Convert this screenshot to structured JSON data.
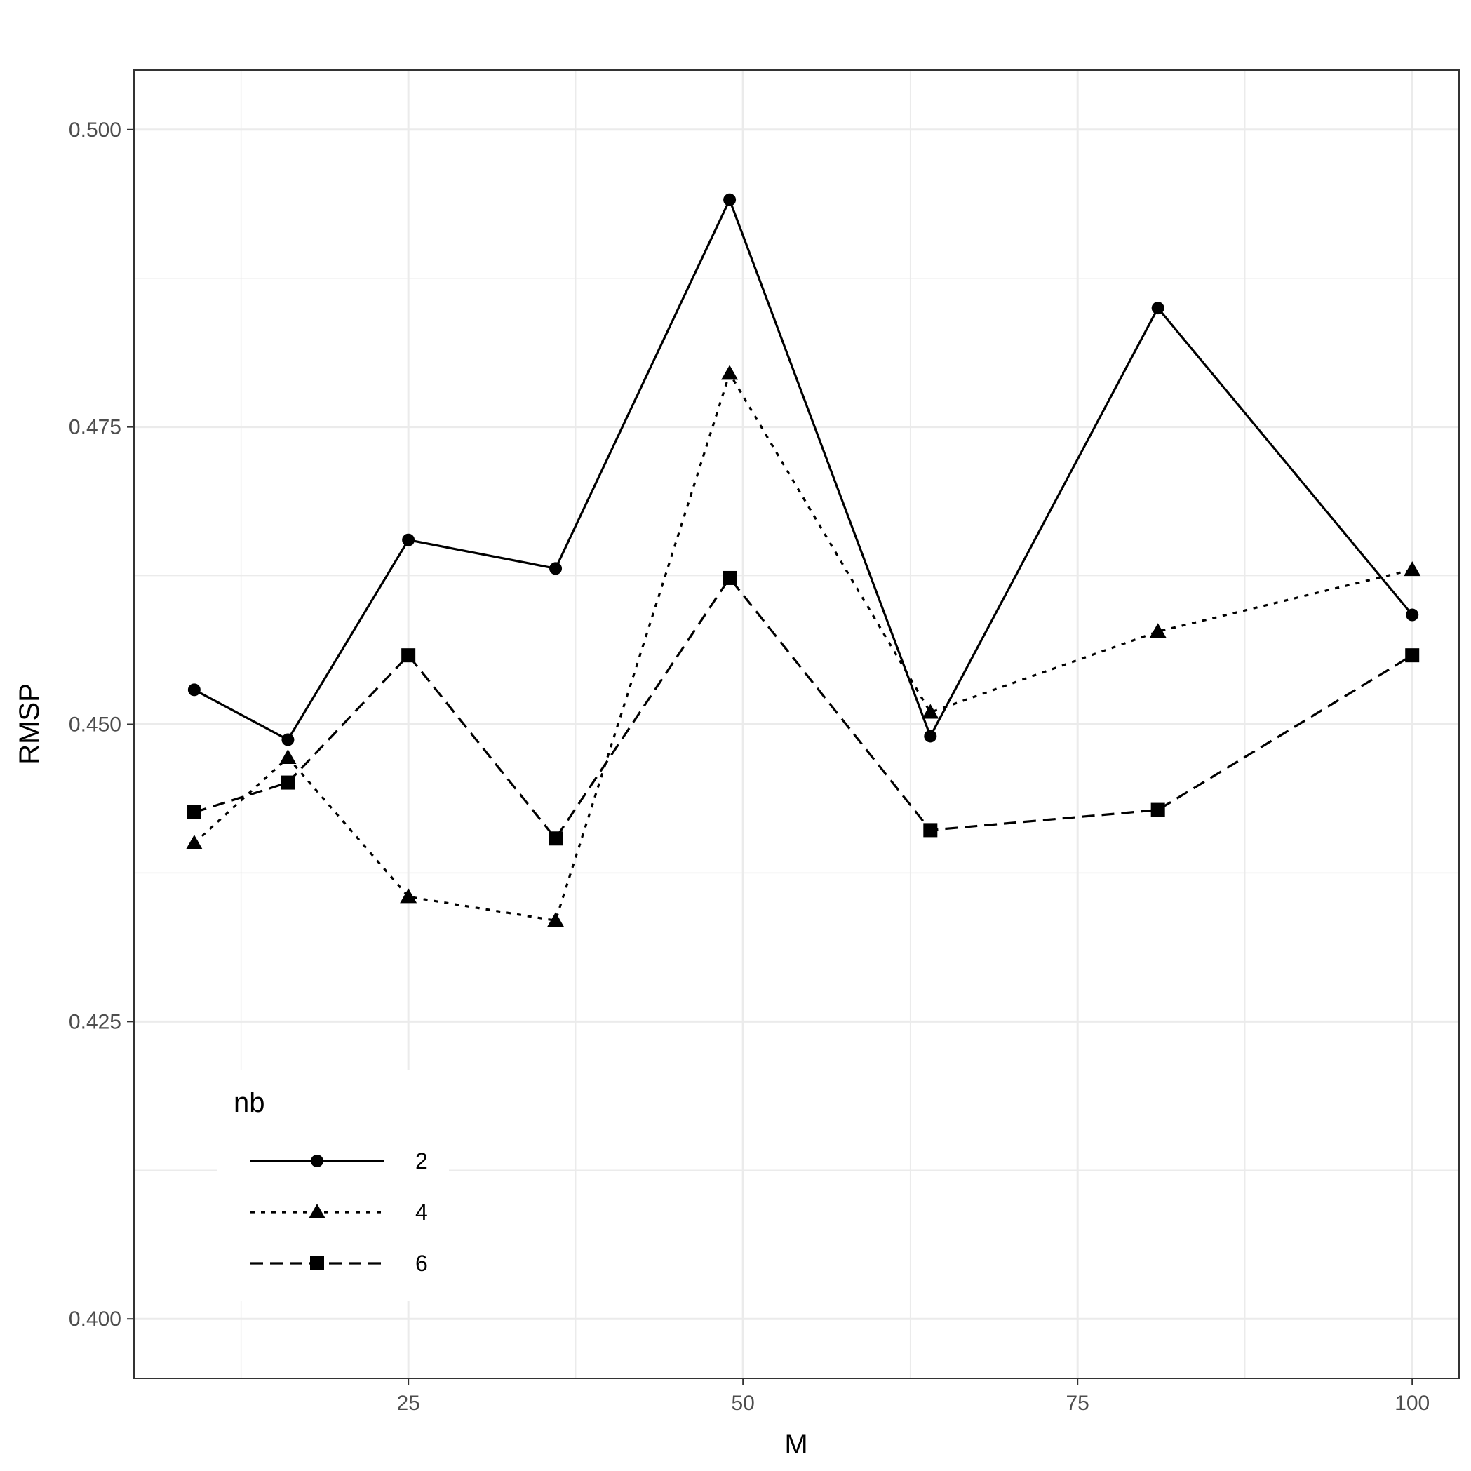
{
  "chart_data": {
    "type": "line",
    "xlabel": "M",
    "ylabel": "RMSP",
    "xlim": [
      4.5,
      103.5
    ],
    "ylim": [
      0.395,
      0.505
    ],
    "x_ticks": [
      25,
      50,
      75,
      100
    ],
    "x_tick_labels": [
      "25",
      "50",
      "75",
      "100"
    ],
    "x_minor_ticks": [
      12.5,
      37.5,
      62.5,
      87.5
    ],
    "y_ticks": [
      0.4,
      0.425,
      0.45,
      0.475,
      0.5
    ],
    "y_tick_labels": [
      "0.400",
      "0.425",
      "0.450",
      "0.475",
      "0.500"
    ],
    "y_minor_ticks": [
      0.4125,
      0.4375,
      0.4625,
      0.4875
    ],
    "grid": true,
    "x": [
      9,
      16,
      25,
      36,
      49,
      64,
      81,
      100
    ],
    "legend": {
      "title": "nb",
      "position": "bottom-left"
    },
    "series": [
      {
        "name": "2",
        "marker": "circle",
        "line_style": "solid",
        "values": [
          0.4529,
          0.4487,
          0.4655,
          0.4631,
          0.4941,
          0.449,
          0.485,
          0.4592
        ]
      },
      {
        "name": "4",
        "marker": "triangle",
        "line_style": "dotted",
        "values": [
          0.44,
          0.4472,
          0.4355,
          0.4335,
          0.4795,
          0.451,
          0.4578,
          0.463
        ]
      },
      {
        "name": "6",
        "marker": "square",
        "line_style": "dashed",
        "values": [
          0.4426,
          0.4451,
          0.4558,
          0.4404,
          0.4623,
          0.4411,
          0.4428,
          0.4558
        ]
      }
    ]
  }
}
